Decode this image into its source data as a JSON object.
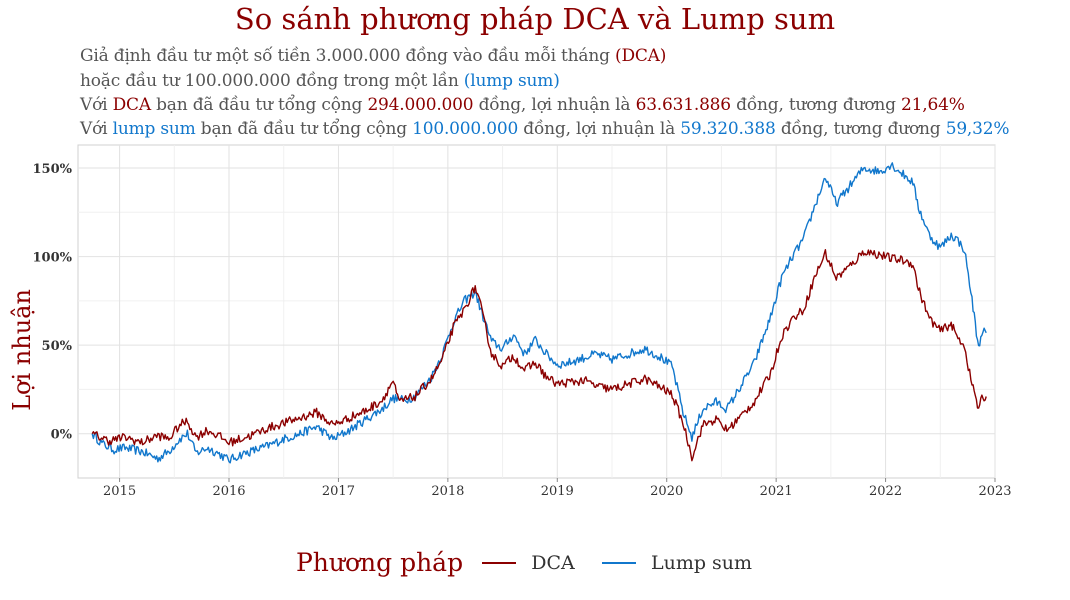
{
  "colors": {
    "dca": "#8B0000",
    "lump": "#1177CC",
    "title": "#8B0000",
    "grid": "#E5E5E5"
  },
  "title": "So sánh phương pháp DCA và Lump sum",
  "subtitle": {
    "line1": {
      "pre": "Giả định đầu tư một số tiền 3.000.000 đồng vào đầu mỗi tháng",
      "method": "(DCA)"
    },
    "line2": {
      "pre": "hoặc đầu tư 100.000.000 đồng trong một lần",
      "method": "(lump sum)"
    },
    "line3": {
      "p1": "Với",
      "method": "DCA",
      "p2": "bạn đã đầu tư tổng cộng",
      "invested": "294.000.000",
      "p3": "đồng, lợi nhuận là",
      "profit": "63.631.886",
      "p4": "đồng, tương đương",
      "pct": "21,64%"
    },
    "line4": {
      "p1": "Với",
      "method": "lump sum",
      "p2": "bạn đã đầu tư tổng cộng",
      "invested": "100.000.000",
      "p3": "đồng, lợi nhuận là",
      "profit": "59.320.388",
      "p4": "đồng, tương đương",
      "pct": "59,32%"
    }
  },
  "legend": {
    "title": "Phương pháp",
    "items": [
      "DCA",
      "Lump sum"
    ]
  },
  "chart_data": {
    "type": "line",
    "ylabel": "Lợi nhuận",
    "xlabel": "",
    "x_ticks": [
      "2015",
      "2016",
      "2017",
      "2018",
      "2019",
      "2020",
      "2021",
      "2022",
      "2023"
    ],
    "y_ticks": [
      "0%",
      "50%",
      "100%",
      "150%"
    ],
    "xlim": [
      2014.62,
      2023.0
    ],
    "ylim": [
      -25,
      163
    ],
    "y_unit": "%",
    "grid": true,
    "legend_position": "bottom",
    "series": [
      {
        "name": "DCA",
        "points": [
          [
            2014.75,
            0
          ],
          [
            2014.9,
            -4
          ],
          [
            2015.05,
            -2
          ],
          [
            2015.2,
            -5
          ],
          [
            2015.35,
            -1
          ],
          [
            2015.45,
            -3
          ],
          [
            2015.55,
            5
          ],
          [
            2015.62,
            7
          ],
          [
            2015.7,
            -2
          ],
          [
            2015.8,
            2
          ],
          [
            2015.9,
            -1
          ],
          [
            2016.0,
            -5
          ],
          [
            2016.1,
            -3
          ],
          [
            2016.2,
            -1
          ],
          [
            2016.35,
            3
          ],
          [
            2016.5,
            6
          ],
          [
            2016.65,
            9
          ],
          [
            2016.8,
            12
          ],
          [
            2016.95,
            5
          ],
          [
            2017.1,
            9
          ],
          [
            2017.25,
            13
          ],
          [
            2017.4,
            19
          ],
          [
            2017.5,
            30
          ],
          [
            2017.55,
            18
          ],
          [
            2017.7,
            21
          ],
          [
            2017.85,
            31
          ],
          [
            2017.95,
            42
          ],
          [
            2018.05,
            60
          ],
          [
            2018.15,
            70
          ],
          [
            2018.25,
            83
          ],
          [
            2018.3,
            72
          ],
          [
            2018.4,
            45
          ],
          [
            2018.5,
            38
          ],
          [
            2018.6,
            44
          ],
          [
            2018.7,
            36
          ],
          [
            2018.8,
            40
          ],
          [
            2018.9,
            32
          ],
          [
            2019.0,
            28
          ],
          [
            2019.1,
            29
          ],
          [
            2019.25,
            30
          ],
          [
            2019.35,
            27
          ],
          [
            2019.5,
            25
          ],
          [
            2019.65,
            28
          ],
          [
            2019.8,
            31
          ],
          [
            2019.95,
            26
          ],
          [
            2020.05,
            22
          ],
          [
            2020.15,
            6
          ],
          [
            2020.23,
            -13
          ],
          [
            2020.33,
            5
          ],
          [
            2020.45,
            8
          ],
          [
            2020.55,
            2
          ],
          [
            2020.65,
            8
          ],
          [
            2020.8,
            18
          ],
          [
            2020.95,
            34
          ],
          [
            2021.05,
            55
          ],
          [
            2021.15,
            65
          ],
          [
            2021.25,
            70
          ],
          [
            2021.35,
            88
          ],
          [
            2021.45,
            102
          ],
          [
            2021.55,
            88
          ],
          [
            2021.7,
            96
          ],
          [
            2021.8,
            103
          ],
          [
            2021.95,
            101
          ],
          [
            2022.05,
            99
          ],
          [
            2022.15,
            98
          ],
          [
            2022.25,
            96
          ],
          [
            2022.3,
            82
          ],
          [
            2022.4,
            65
          ],
          [
            2022.5,
            58
          ],
          [
            2022.6,
            62
          ],
          [
            2022.65,
            55
          ],
          [
            2022.72,
            50
          ],
          [
            2022.78,
            30
          ],
          [
            2022.82,
            22
          ],
          [
            2022.85,
            13
          ],
          [
            2022.88,
            20
          ],
          [
            2022.92,
            21
          ]
        ]
      },
      {
        "name": "Lump sum",
        "points": [
          [
            2014.75,
            0
          ],
          [
            2014.85,
            -6
          ],
          [
            2014.95,
            -9
          ],
          [
            2015.05,
            -8
          ],
          [
            2015.2,
            -10
          ],
          [
            2015.35,
            -14
          ],
          [
            2015.45,
            -10
          ],
          [
            2015.55,
            -3
          ],
          [
            2015.62,
            0
          ],
          [
            2015.7,
            -11
          ],
          [
            2015.8,
            -8
          ],
          [
            2015.9,
            -11
          ],
          [
            2016.0,
            -15
          ],
          [
            2016.1,
            -12
          ],
          [
            2016.2,
            -10
          ],
          [
            2016.35,
            -7
          ],
          [
            2016.5,
            -3
          ],
          [
            2016.65,
            0
          ],
          [
            2016.8,
            4
          ],
          [
            2016.95,
            -3
          ],
          [
            2017.1,
            2
          ],
          [
            2017.25,
            8
          ],
          [
            2017.4,
            14
          ],
          [
            2017.5,
            20
          ],
          [
            2017.6,
            19
          ],
          [
            2017.7,
            21
          ],
          [
            2017.85,
            32
          ],
          [
            2017.95,
            45
          ],
          [
            2018.05,
            63
          ],
          [
            2018.15,
            75
          ],
          [
            2018.25,
            80
          ],
          [
            2018.3,
            70
          ],
          [
            2018.4,
            52
          ],
          [
            2018.5,
            48
          ],
          [
            2018.6,
            56
          ],
          [
            2018.7,
            45
          ],
          [
            2018.8,
            53
          ],
          [
            2018.9,
            45
          ],
          [
            2019.0,
            39
          ],
          [
            2019.1,
            40
          ],
          [
            2019.25,
            43
          ],
          [
            2019.35,
            45
          ],
          [
            2019.5,
            42
          ],
          [
            2019.65,
            45
          ],
          [
            2019.8,
            48
          ],
          [
            2019.95,
            43
          ],
          [
            2020.05,
            38
          ],
          [
            2020.15,
            12
          ],
          [
            2020.23,
            -2
          ],
          [
            2020.33,
            14
          ],
          [
            2020.45,
            18
          ],
          [
            2020.55,
            14
          ],
          [
            2020.65,
            24
          ],
          [
            2020.8,
            40
          ],
          [
            2020.95,
            66
          ],
          [
            2021.05,
            88
          ],
          [
            2021.15,
            100
          ],
          [
            2021.25,
            110
          ],
          [
            2021.35,
            128
          ],
          [
            2021.45,
            145
          ],
          [
            2021.55,
            130
          ],
          [
            2021.7,
            142
          ],
          [
            2021.8,
            150
          ],
          [
            2021.95,
            148
          ],
          [
            2022.05,
            152
          ],
          [
            2022.15,
            147
          ],
          [
            2022.25,
            142
          ],
          [
            2022.3,
            128
          ],
          [
            2022.4,
            112
          ],
          [
            2022.5,
            105
          ],
          [
            2022.6,
            112
          ],
          [
            2022.65,
            110
          ],
          [
            2022.72,
            104
          ],
          [
            2022.78,
            80
          ],
          [
            2022.82,
            62
          ],
          [
            2022.85,
            48
          ],
          [
            2022.88,
            58
          ],
          [
            2022.92,
            57
          ]
        ]
      }
    ]
  }
}
